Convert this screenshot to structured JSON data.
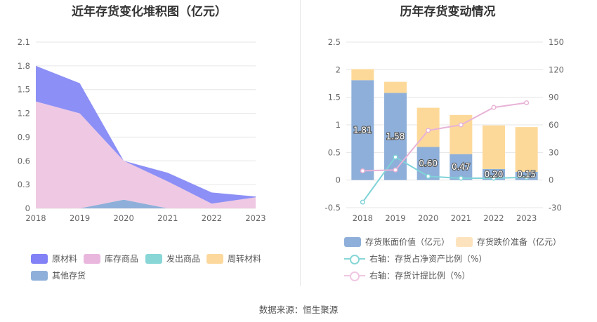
{
  "left_title": "近年存货变化堆积图（亿元）",
  "right_title": "历年存货变动情况",
  "source": "数据来源：恒生聚源",
  "chart_data": [
    {
      "type": "area",
      "stacked": true,
      "title": "近年存货变化堆积图（亿元）",
      "x": [
        "2018",
        "2019",
        "2020",
        "2021",
        "2022",
        "2023"
      ],
      "ylim": [
        0,
        2.1
      ],
      "yticks": [
        "0",
        "0.3",
        "0.6",
        "0.9",
        "1.2",
        "1.5",
        "1.8",
        "2.1"
      ],
      "series": [
        {
          "name": "其他存货",
          "color": "#8eafd9",
          "values": [
            0,
            0,
            0.11,
            0,
            0,
            0
          ]
        },
        {
          "name": "发出商品",
          "color": "#88d6d6",
          "values": [
            0,
            0,
            0,
            0,
            0,
            0
          ]
        },
        {
          "name": "库存商品",
          "color": "#efc8e3",
          "values": [
            1.35,
            1.2,
            0.49,
            0.34,
            0.06,
            0.14
          ]
        },
        {
          "name": "周转材料",
          "color": "#fcd89d",
          "values": [
            0,
            0,
            0,
            0,
            0,
            0
          ]
        },
        {
          "name": "原材料",
          "color": "#8c8ff5",
          "values": [
            0.45,
            0.38,
            0,
            0.11,
            0.14,
            0.01
          ]
        }
      ],
      "legend": [
        {
          "name": "原材料",
          "color": "#8282f6"
        },
        {
          "name": "库存商品",
          "color": "#e9b7dd"
        },
        {
          "name": "发出商品",
          "color": "#88d6d6"
        },
        {
          "name": "周转材料",
          "color": "#fcd89d"
        },
        {
          "name": "其他存货",
          "color": "#8eafd9"
        }
      ]
    },
    {
      "type": "bar+line",
      "title": "历年存货变动情况",
      "categories": [
        "2018",
        "2019",
        "2020",
        "2021",
        "2022",
        "2023"
      ],
      "ylim_left": [
        -0.5,
        2.5
      ],
      "ylim_right": [
        -30,
        150
      ],
      "yticks_left": [
        "-0.5",
        "0",
        "0.5",
        "1",
        "1.5",
        "2",
        "2.5"
      ],
      "yticks_right": [
        "-30",
        "0",
        "30",
        "60",
        "90",
        "120",
        "150"
      ],
      "bars": [
        {
          "name": "存货账面价值（亿元）",
          "color": "#8eafd9",
          "values": [
            1.81,
            1.58,
            0.6,
            0.47,
            0.2,
            0.15
          ],
          "labels": [
            "1.81",
            "1.58",
            "0.60",
            "0.47",
            "0.20",
            "0.15"
          ]
        },
        {
          "name": "存货跌价准备（亿元）",
          "color": "#fdd999",
          "values": [
            0.2,
            0.2,
            0.71,
            0.71,
            0.79,
            0.81
          ]
        }
      ],
      "lines": [
        {
          "name": "右轴：存货占净资产比例（%）",
          "color": "#7fd3d8",
          "values": [
            -24,
            25,
            4,
            2,
            2,
            3
          ]
        },
        {
          "name": "右轴：存货计提比例（%）",
          "color": "#e8b3d7",
          "values": [
            10,
            11,
            54,
            60,
            79,
            84
          ]
        }
      ],
      "legend": [
        {
          "name": "存货账面价值（亿元）",
          "color": "#8eafd9",
          "kind": "bar"
        },
        {
          "name": "存货跌价准备（亿元）",
          "color": "#fde3bd",
          "kind": "bar"
        },
        {
          "name": "右轴：存货占净资产比例（%）",
          "color": "#88d6d6",
          "kind": "line"
        },
        {
          "name": "右轴：存货计提比例（%）",
          "color": "#efc8e3",
          "kind": "line"
        }
      ]
    }
  ]
}
